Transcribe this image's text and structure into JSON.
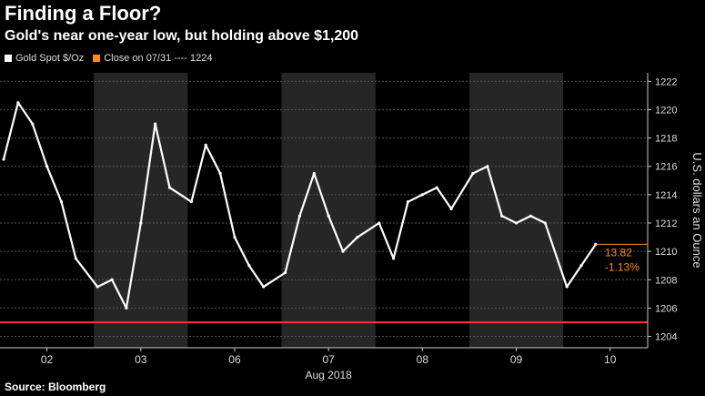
{
  "title": "Finding a Floor?",
  "subtitle": "Gold's near one-year low, but holding above $1,200",
  "source": "Source: Bloomberg",
  "colors": {
    "background": "#000000",
    "series": "#ffffff",
    "close_line": "#ff8c1a",
    "highlight": "#ff2a3a",
    "grid": "#555555",
    "session_band": "#262626"
  },
  "legend": {
    "series_label": "Gold Spot $/Oz",
    "close_label": "Close on 07/31 ---- 1224"
  },
  "annotations": {
    "change": "13.82",
    "change_pct": "-1.13%"
  },
  "chart_data": {
    "type": "line",
    "series": [
      {
        "name": "Gold Spot $/Oz",
        "x": [
          "08-02 00:00",
          "08-02 04:00",
          "08-02 08:00",
          "08-02 12:00",
          "08-02 16:00",
          "08-02 20:00",
          "08-03 00:00",
          "08-03 04:00",
          "08-03 08:00",
          "08-03 12:00",
          "08-03 16:00",
          "08-03 20:00",
          "08-06 00:00",
          "08-06 04:00",
          "08-06 08:00",
          "08-06 12:00",
          "08-06 16:00",
          "08-06 20:00",
          "08-07 00:00",
          "08-07 04:00",
          "08-07 08:00",
          "08-07 12:00",
          "08-07 16:00",
          "08-07 20:00",
          "08-08 00:00",
          "08-08 04:00",
          "08-08 08:00",
          "08-08 12:00",
          "08-08 16:00",
          "08-08 20:00",
          "08-09 00:00",
          "08-09 04:00",
          "08-09 08:00",
          "08-09 12:00",
          "08-09 16:00",
          "08-09 20:00",
          "08-10 00:00",
          "08-10 04:00",
          "08-10 08:00"
        ],
        "values": [
          1216.5,
          1220.5,
          1219.0,
          1216.0,
          1213.5,
          1209.5,
          1207.5,
          1208.0,
          1206.0,
          1212.0,
          1219.0,
          1214.5,
          1213.5,
          1217.5,
          1215.5,
          1211.0,
          1209.0,
          1207.5,
          1208.5,
          1212.5,
          1215.5,
          1212.5,
          1210.0,
          1211.0,
          1212.0,
          1209.5,
          1213.5,
          1214.0,
          1214.5,
          1213.0,
          1215.5,
          1216.0,
          1212.5,
          1212.0,
          1212.5,
          1212.0,
          1207.5,
          1209.0,
          1210.5
        ]
      }
    ],
    "reference_lines": [
      {
        "label": "Close on 07/31 ---- 1224",
        "value": 1224
      },
      {
        "label": "",
        "value": 1205
      }
    ],
    "x_ticks": [
      "02",
      "03",
      "06",
      "07",
      "08",
      "09",
      "10"
    ],
    "xlabel": "Aug 2018",
    "ylabel": "U.S. dollars an Ounce",
    "ylim": [
      1203.2,
      1222.6
    ],
    "y_ticks": [
      1204,
      1206,
      1208,
      1210,
      1212,
      1214,
      1216,
      1218,
      1220,
      1222
    ],
    "shaded_sessions": [
      "03",
      "07",
      "09"
    ],
    "grid": true,
    "legend_position": "top-left"
  }
}
